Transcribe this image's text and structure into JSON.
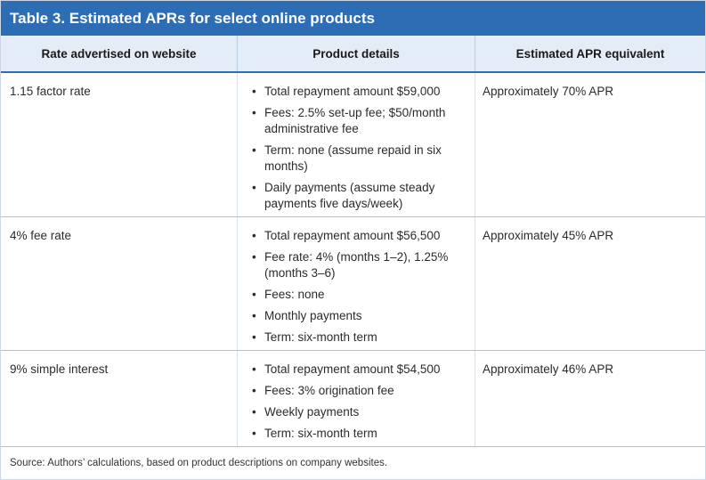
{
  "table": {
    "title": "Table 3. Estimated APRs for select online products",
    "headers": [
      "Rate advertised on website",
      "Product details",
      "Estimated APR equivalent"
    ],
    "rows": [
      {
        "rate": "1.15 factor rate",
        "details": [
          "Total repayment amount $59,000",
          "Fees: 2.5% set-up fee; $50/month administrative fee",
          "Term: none (assume repaid in six months)",
          "Daily payments (assume steady payments five days/week)"
        ],
        "apr": "Approximately 70% APR"
      },
      {
        "rate": "4% fee rate",
        "details": [
          "Total repayment amount $56,500",
          "Fee rate: 4% (months 1–2), 1.25% (months 3–6)",
          "Fees: none",
          "Monthly payments",
          "Term: six-month term"
        ],
        "apr": "Approximately 45% APR"
      },
      {
        "rate": "9% simple interest",
        "details": [
          "Total repayment amount $54,500",
          "Fees: 3% origination fee",
          "Weekly payments",
          "Term: six-month term"
        ],
        "apr": "Approximately 46% APR"
      }
    ],
    "source": "Source: Authors’ calculations, based on product descriptions on company websites."
  },
  "colors": {
    "title_bar": "#2d6db4",
    "header_bg": "#e4edf7",
    "row_divider": "#a7c1de"
  }
}
